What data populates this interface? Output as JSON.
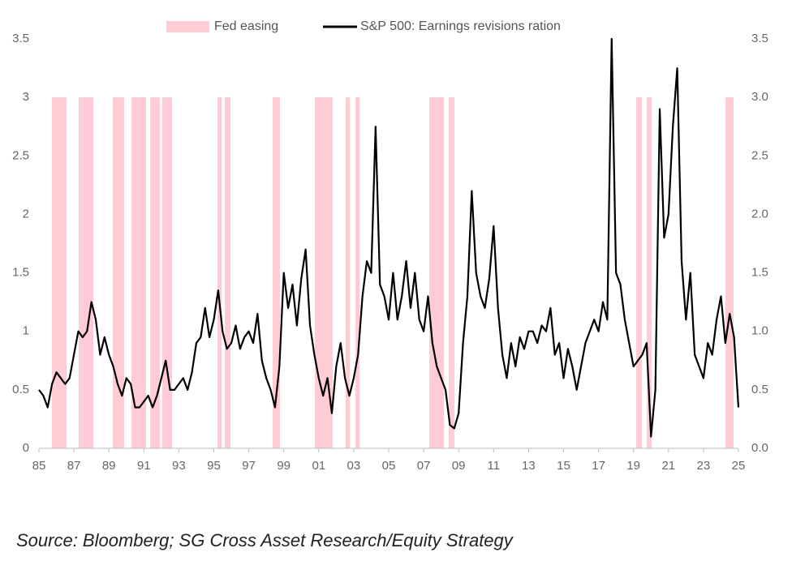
{
  "chart_data": {
    "type": "line",
    "legend": "top",
    "x": [
      1985,
      1985.25,
      1985.5,
      1985.75,
      1986,
      1986.25,
      1986.5,
      1986.75,
      1987,
      1987.25,
      1987.5,
      1987.75,
      1988,
      1988.25,
      1988.5,
      1988.75,
      1989,
      1989.25,
      1989.5,
      1989.75,
      1990,
      1990.25,
      1990.5,
      1990.75,
      1991,
      1991.25,
      1991.5,
      1991.75,
      1992,
      1992.25,
      1992.5,
      1992.75,
      1993,
      1993.25,
      1993.5,
      1993.75,
      1994,
      1994.25,
      1994.5,
      1994.75,
      1995,
      1995.25,
      1995.5,
      1995.75,
      1996,
      1996.25,
      1996.5,
      1996.75,
      1997,
      1997.25,
      1997.5,
      1997.75,
      1998,
      1998.25,
      1998.5,
      1998.75,
      1999,
      1999.25,
      1999.5,
      1999.75,
      2000,
      2000.25,
      2000.5,
      2000.75,
      2001,
      2001.25,
      2001.5,
      2001.75,
      2002,
      2002.25,
      2002.5,
      2002.75,
      2003,
      2003.25,
      2003.5,
      2003.75,
      2004,
      2004.25,
      2004.5,
      2004.75,
      2005,
      2005.25,
      2005.5,
      2005.75,
      2006,
      2006.25,
      2006.5,
      2006.75,
      2007,
      2007.25,
      2007.5,
      2007.75,
      2008,
      2008.25,
      2008.5,
      2008.75,
      2009,
      2009.25,
      2009.5,
      2009.75,
      2010,
      2010.25,
      2010.5,
      2010.75,
      2011,
      2011.25,
      2011.5,
      2011.75,
      2012,
      2012.25,
      2012.5,
      2012.75,
      2013,
      2013.25,
      2013.5,
      2013.75,
      2014,
      2014.25,
      2014.5,
      2014.75,
      2015,
      2015.25,
      2015.5,
      2015.75,
      2016,
      2016.25,
      2016.5,
      2016.75,
      2017,
      2017.25,
      2017.5,
      2017.75,
      2018,
      2018.25,
      2018.5,
      2018.75,
      2019,
      2019.25,
      2019.5,
      2019.75,
      2020,
      2020.25,
      2020.5,
      2020.75,
      2021,
      2021.25,
      2021.5,
      2021.75,
      2022,
      2022.25,
      2022.5,
      2022.75,
      2023,
      2023.25,
      2023.5,
      2023.75,
      2024,
      2024.25,
      2024.5,
      2024.75,
      2025
    ],
    "series": [
      {
        "name": "S&P 500: Earnings revisions ration",
        "color": "#000000",
        "values": [
          0.5,
          0.45,
          0.35,
          0.55,
          0.65,
          0.6,
          0.55,
          0.6,
          0.8,
          1.0,
          0.95,
          1.0,
          1.25,
          1.1,
          0.8,
          0.95,
          0.8,
          0.7,
          0.55,
          0.45,
          0.6,
          0.55,
          0.35,
          0.35,
          0.4,
          0.45,
          0.35,
          0.45,
          0.6,
          0.75,
          0.5,
          0.5,
          0.55,
          0.6,
          0.5,
          0.65,
          0.9,
          0.95,
          1.2,
          0.95,
          1.1,
          1.35,
          1.0,
          0.85,
          0.9,
          1.05,
          0.85,
          0.95,
          1.0,
          0.9,
          1.15,
          0.75,
          0.6,
          0.5,
          0.35,
          0.7,
          1.5,
          1.2,
          1.4,
          1.05,
          1.45,
          1.7,
          1.05,
          0.8,
          0.6,
          0.45,
          0.6,
          0.3,
          0.7,
          0.9,
          0.6,
          0.45,
          0.6,
          0.8,
          1.3,
          1.6,
          1.5,
          2.75,
          1.4,
          1.3,
          1.1,
          1.5,
          1.1,
          1.3,
          1.6,
          1.2,
          1.5,
          1.1,
          1.0,
          1.3,
          0.9,
          0.7,
          0.6,
          0.5,
          0.2,
          0.17,
          0.3,
          0.9,
          1.3,
          2.2,
          1.5,
          1.3,
          1.2,
          1.45,
          1.9,
          1.2,
          0.8,
          0.6,
          0.9,
          0.7,
          0.95,
          0.85,
          1.0,
          1.0,
          0.9,
          1.05,
          1.0,
          1.2,
          0.8,
          0.9,
          0.6,
          0.85,
          0.7,
          0.5,
          0.7,
          0.9,
          1.0,
          1.1,
          1.0,
          1.25,
          1.1,
          3.5,
          1.5,
          1.4,
          1.1,
          0.9,
          0.7,
          0.75,
          0.8,
          0.9,
          0.1,
          0.5,
          2.9,
          1.8,
          2.0,
          2.75,
          3.25,
          1.6,
          1.1,
          1.5,
          0.8,
          0.7,
          0.6,
          0.9,
          0.8,
          1.1,
          1.3,
          0.9,
          1.15,
          0.95,
          0.35
        ]
      }
    ],
    "bands": {
      "name": "Fed easing",
      "color": "#ffccd5",
      "ranges": [
        [
          1985.74,
          1986.58
        ],
        [
          1987.27,
          1988.11
        ],
        [
          1989.22,
          1989.87
        ],
        [
          1990.29,
          1991.13
        ],
        [
          1991.36,
          1991.91
        ],
        [
          1992.05,
          1992.61
        ],
        [
          1995.21,
          1995.44
        ],
        [
          1995.63,
          1995.95
        ],
        [
          1998.36,
          1998.78
        ],
        [
          2000.78,
          2001.8
        ],
        [
          2002.54,
          2002.77
        ],
        [
          2003.1,
          2003.33
        ],
        [
          2007.32,
          2008.16
        ],
        [
          2008.43,
          2008.76
        ],
        [
          2019.15,
          2019.48
        ],
        [
          2019.76,
          2020.03
        ],
        [
          2024.26,
          2024.72
        ]
      ]
    },
    "xlim": [
      1985,
      2025
    ],
    "xticks": [
      {
        "value": 1985,
        "label": "85"
      },
      {
        "value": 1987,
        "label": "87"
      },
      {
        "value": 1989,
        "label": "89"
      },
      {
        "value": 1991,
        "label": "91"
      },
      {
        "value": 1993,
        "label": "93"
      },
      {
        "value": 1995,
        "label": "95"
      },
      {
        "value": 1997,
        "label": "97"
      },
      {
        "value": 1999,
        "label": "99"
      },
      {
        "value": 2001,
        "label": "01"
      },
      {
        "value": 2003,
        "label": "03"
      },
      {
        "value": 2005,
        "label": "05"
      },
      {
        "value": 2007,
        "label": "07"
      },
      {
        "value": 2009,
        "label": "09"
      },
      {
        "value": 2011,
        "label": "11"
      },
      {
        "value": 2013,
        "label": "13"
      },
      {
        "value": 2015,
        "label": "15"
      },
      {
        "value": 2017,
        "label": "17"
      },
      {
        "value": 2019,
        "label": "19"
      },
      {
        "value": 2021,
        "label": "21"
      },
      {
        "value": 2023,
        "label": "23"
      },
      {
        "value": 2025,
        "label": "25"
      }
    ],
    "ylim": [
      0,
      3.5
    ],
    "yticks": [
      0,
      0.5,
      1,
      1.5,
      2,
      2.5,
      3,
      3.5
    ],
    "y2lim": [
      0,
      3.5
    ],
    "y2ticks": [
      {
        "value": 0,
        "label": "0.0"
      },
      {
        "value": 0.5,
        "label": "0.5"
      },
      {
        "value": 1,
        "label": "1.0"
      },
      {
        "value": 1.5,
        "label": "1.5"
      },
      {
        "value": 2,
        "label": "2.0"
      },
      {
        "value": 2.5,
        "label": "2.5"
      },
      {
        "value": 3,
        "label": "3.0"
      },
      {
        "value": 3.5,
        "label": "3.5"
      }
    ]
  },
  "source": "Source: Bloomberg; SG Cross Asset Research/Equity Strategy"
}
